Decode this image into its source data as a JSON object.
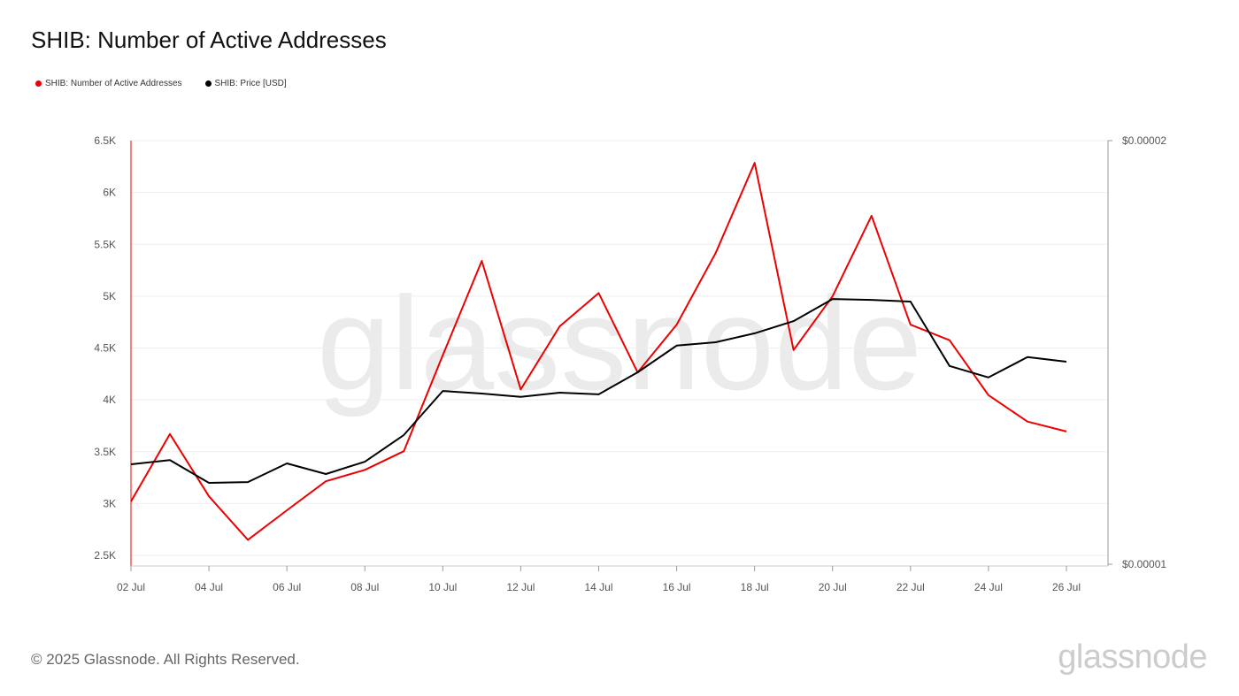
{
  "chart_data": {
    "type": "line",
    "title": "SHIB: Number of Active Addresses",
    "x": [
      "02 Jul",
      "03 Jul",
      "04 Jul",
      "05 Jul",
      "06 Jul",
      "07 Jul",
      "08 Jul",
      "09 Jul",
      "10 Jul",
      "11 Jul",
      "12 Jul",
      "13 Jul",
      "14 Jul",
      "15 Jul",
      "16 Jul",
      "17 Jul",
      "18 Jul",
      "19 Jul",
      "20 Jul",
      "21 Jul",
      "22 Jul",
      "23 Jul",
      "24 Jul",
      "25 Jul",
      "26 Jul"
    ],
    "x_tick_labels": [
      "02 Jul",
      "04 Jul",
      "06 Jul",
      "08 Jul",
      "10 Jul",
      "12 Jul",
      "14 Jul",
      "16 Jul",
      "18 Jul",
      "20 Jul",
      "22 Jul",
      "24 Jul",
      "26 Jul"
    ],
    "y_left": {
      "ylim": [
        2500,
        6500
      ],
      "ticks": [
        2500,
        3000,
        3500,
        4000,
        4500,
        5000,
        5500,
        6000,
        6500
      ],
      "tick_labels": [
        "2.5K",
        "3K",
        "3.5K",
        "4K",
        "4.5K",
        "5K",
        "5.5K",
        "6K",
        "6.5K"
      ]
    },
    "y_right": {
      "ylim": [
        1e-05,
        2e-05
      ],
      "tick_labels": [
        "$0.00001",
        "$0.00002"
      ]
    },
    "grid": true,
    "legend_placement": "top-left",
    "series": [
      {
        "name": "SHIB: Number of Active Addresses",
        "axis": "left",
        "color": "#ee0000",
        "values": [
          3020,
          3670,
          3070,
          2650,
          2935,
          3215,
          3325,
          3505,
          4430,
          5340,
          4100,
          4710,
          5030,
          4265,
          4725,
          5415,
          6285,
          4480,
          5000,
          5775,
          4725,
          4575,
          4045,
          3790,
          3695
        ]
      },
      {
        "name": "SHIB: Price [USD]",
        "axis": "right",
        "color": "#000000",
        "values": [
          1.236e-05,
          1.246e-05,
          1.192e-05,
          1.194e-05,
          1.238e-05,
          1.213e-05,
          1.242e-05,
          1.305e-05,
          1.409e-05,
          1.403e-05,
          1.395e-05,
          1.405e-05,
          1.401e-05,
          1.453e-05,
          1.516e-05,
          1.524e-05,
          1.545e-05,
          1.574e-05,
          1.626e-05,
          1.624e-05,
          1.62e-05,
          1.468e-05,
          1.441e-05,
          1.489e-05,
          1.478e-05
        ]
      }
    ]
  },
  "footer": "© 2025 Glassnode. All Rights Reserved.",
  "watermark": "glassnode",
  "logo": "glassnode"
}
